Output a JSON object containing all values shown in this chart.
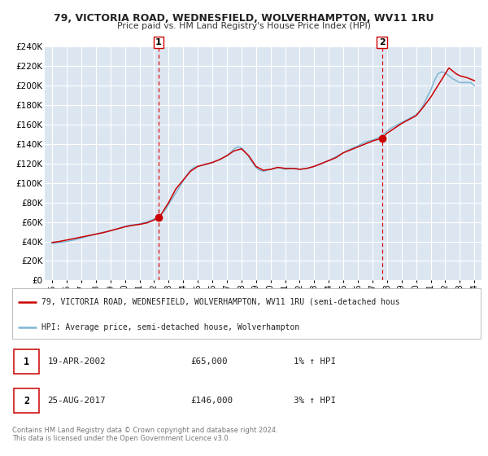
{
  "title": "79, VICTORIA ROAD, WEDNESFIELD, WOLVERHAMPTON, WV11 1RU",
  "subtitle": "Price paid vs. HM Land Registry's House Price Index (HPI)",
  "background_color": "#ffffff",
  "plot_bg_color": "#dce6f1",
  "grid_color": "#ffffff",
  "ylim": [
    0,
    240000
  ],
  "yticks": [
    0,
    20000,
    40000,
    60000,
    80000,
    100000,
    120000,
    140000,
    160000,
    180000,
    200000,
    220000,
    240000
  ],
  "xlim_start": 1994.5,
  "xlim_end": 2024.5,
  "xticks": [
    1995,
    1996,
    1997,
    1998,
    1999,
    2000,
    2001,
    2002,
    2003,
    2004,
    2005,
    2006,
    2007,
    2008,
    2009,
    2010,
    2011,
    2012,
    2013,
    2014,
    2015,
    2016,
    2017,
    2018,
    2019,
    2020,
    2021,
    2022,
    2023,
    2024
  ],
  "sale_points": [
    {
      "year": 2002.3,
      "value": 65000,
      "label": "1"
    },
    {
      "year": 2017.65,
      "value": 146000,
      "label": "2"
    }
  ],
  "vline_color": "#dd0000",
  "sale_marker_color": "#cc0000",
  "hpi_line_color": "#7eb6d4",
  "price_line_color": "#cc0000",
  "legend_line1": "79, VICTORIA ROAD, WEDNESFIELD, WOLVERHAMPTON, WV11 1RU (semi-detached hous",
  "legend_line2": "HPI: Average price, semi-detached house, Wolverhampton",
  "annotation1_date": "19-APR-2002",
  "annotation1_price": "£65,000",
  "annotation1_hpi": "1% ↑ HPI",
  "annotation2_date": "25-AUG-2017",
  "annotation2_price": "£146,000",
  "annotation2_hpi": "3% ↑ HPI",
  "footer1": "Contains HM Land Registry data © Crown copyright and database right 2024.",
  "footer2": "This data is licensed under the Open Government Licence v3.0.",
  "hpi_data_x": [
    1995.0,
    1995.25,
    1995.5,
    1995.75,
    1996.0,
    1996.25,
    1996.5,
    1996.75,
    1997.0,
    1997.25,
    1997.5,
    1997.75,
    1998.0,
    1998.25,
    1998.5,
    1998.75,
    1999.0,
    1999.25,
    1999.5,
    1999.75,
    2000.0,
    2000.25,
    2000.5,
    2000.75,
    2001.0,
    2001.25,
    2001.5,
    2001.75,
    2002.0,
    2002.25,
    2002.5,
    2002.75,
    2003.0,
    2003.25,
    2003.5,
    2003.75,
    2004.0,
    2004.25,
    2004.5,
    2004.75,
    2005.0,
    2005.25,
    2005.5,
    2005.75,
    2006.0,
    2006.25,
    2006.5,
    2006.75,
    2007.0,
    2007.25,
    2007.5,
    2007.75,
    2008.0,
    2008.25,
    2008.5,
    2008.75,
    2009.0,
    2009.25,
    2009.5,
    2009.75,
    2010.0,
    2010.25,
    2010.5,
    2010.75,
    2011.0,
    2011.25,
    2011.5,
    2011.75,
    2012.0,
    2012.25,
    2012.5,
    2012.75,
    2013.0,
    2013.25,
    2013.5,
    2013.75,
    2014.0,
    2014.25,
    2014.5,
    2014.75,
    2015.0,
    2015.25,
    2015.5,
    2015.75,
    2016.0,
    2016.25,
    2016.5,
    2016.75,
    2017.0,
    2017.25,
    2017.5,
    2017.75,
    2018.0,
    2018.25,
    2018.5,
    2018.75,
    2019.0,
    2019.25,
    2019.5,
    2019.75,
    2020.0,
    2020.25,
    2020.5,
    2020.75,
    2021.0,
    2021.25,
    2021.5,
    2021.75,
    2022.0,
    2022.25,
    2022.5,
    2022.75,
    2023.0,
    2023.25,
    2023.5,
    2023.75,
    2024.0
  ],
  "hpi_data_y": [
    38000,
    38500,
    39000,
    39500,
    40000,
    40800,
    41500,
    42500,
    43500,
    44500,
    45500,
    46500,
    47500,
    48500,
    49500,
    50000,
    51000,
    52000,
    53000,
    54500,
    55500,
    56500,
    57000,
    57500,
    58000,
    59000,
    60000,
    61500,
    63000,
    65000,
    68000,
    72000,
    78000,
    84000,
    90000,
    96000,
    102000,
    108000,
    113000,
    116000,
    117000,
    118000,
    119000,
    120000,
    121000,
    122500,
    124000,
    126000,
    128000,
    131000,
    135000,
    137000,
    136000,
    132000,
    127000,
    121000,
    116000,
    113000,
    112000,
    113000,
    114000,
    115000,
    116000,
    115000,
    114000,
    114500,
    115000,
    115000,
    114000,
    114500,
    115000,
    116000,
    117000,
    118500,
    120000,
    121500,
    123000,
    125000,
    127000,
    129000,
    131000,
    133000,
    135000,
    136500,
    138000,
    140000,
    142000,
    143000,
    144000,
    145500,
    147000,
    150000,
    153000,
    156000,
    158000,
    160000,
    162000,
    164000,
    166000,
    168000,
    170000,
    174000,
    180000,
    188000,
    195000,
    205000,
    212000,
    214000,
    213000,
    210000,
    207000,
    205000,
    203000,
    203000,
    203000,
    203000,
    200000
  ],
  "price_data_x": [
    1995.0,
    1995.5,
    1996.0,
    1996.5,
    1997.0,
    1997.5,
    1998.0,
    1998.5,
    1999.0,
    1999.5,
    2000.0,
    2000.5,
    2001.0,
    2001.5,
    2002.0,
    2002.3,
    2002.5,
    2003.0,
    2003.5,
    2004.0,
    2004.5,
    2005.0,
    2005.5,
    2006.0,
    2006.5,
    2007.0,
    2007.5,
    2008.0,
    2008.5,
    2009.0,
    2009.5,
    2010.0,
    2010.5,
    2011.0,
    2011.5,
    2012.0,
    2012.5,
    2013.0,
    2013.5,
    2014.0,
    2014.5,
    2015.0,
    2015.5,
    2016.0,
    2016.5,
    2017.0,
    2017.65,
    2018.0,
    2018.5,
    2019.0,
    2019.5,
    2020.0,
    2020.5,
    2021.0,
    2021.5,
    2022.0,
    2022.25,
    2022.5,
    2022.75,
    2023.0,
    2023.5,
    2024.0
  ],
  "price_data_y": [
    39000,
    40000,
    41500,
    43000,
    44500,
    46000,
    47500,
    49000,
    51000,
    53000,
    55000,
    56500,
    57500,
    59000,
    62000,
    65000,
    68000,
    80000,
    94000,
    103000,
    112000,
    117000,
    119000,
    121000,
    124000,
    128000,
    133000,
    135000,
    128000,
    117000,
    113000,
    114000,
    116000,
    115000,
    115000,
    114000,
    115000,
    117000,
    120000,
    123000,
    126000,
    131000,
    134000,
    137000,
    140000,
    143000,
    146000,
    151000,
    156000,
    161000,
    165000,
    169000,
    178000,
    188000,
    200000,
    212000,
    218000,
    215000,
    212000,
    210000,
    208000,
    205000
  ]
}
